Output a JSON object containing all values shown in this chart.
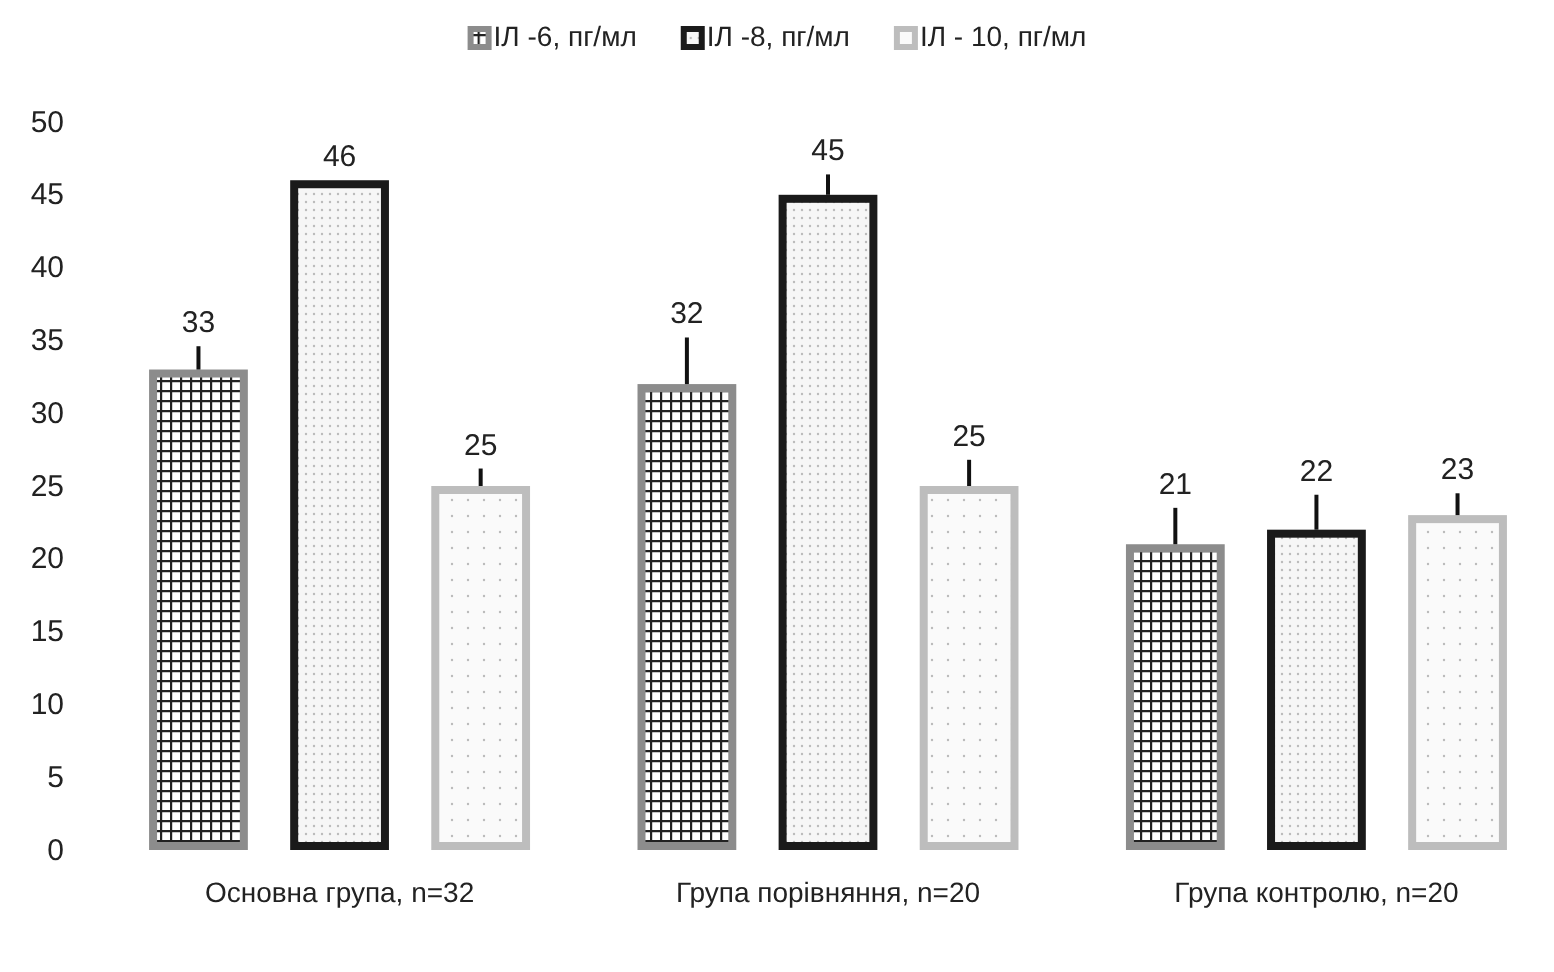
{
  "chart_data": {
    "type": "bar",
    "categories": [
      "Основна група, n=32",
      "Група порівняння, n=20",
      "Група контролю, n=20"
    ],
    "series": [
      {
        "name": "ІЛ -6, пг/мл",
        "color": "#8c8c8c",
        "values": [
          33,
          32,
          21
        ],
        "errors": [
          [
            33,
            34.6
          ],
          [
            32,
            35.2
          ],
          [
            21,
            23.5
          ]
        ]
      },
      {
        "name": "ІЛ -8, пг/мл",
        "color": "#1a1a1a",
        "values": [
          46,
          45,
          22
        ],
        "errors": [
          null,
          [
            45,
            46.4
          ],
          [
            22,
            24.4
          ]
        ]
      },
      {
        "name": "ІЛ - 10, пг/мл",
        "color": "#bdbdbd",
        "values": [
          25,
          25,
          23
        ],
        "errors": [
          [
            25,
            26.2
          ],
          [
            25,
            26.8
          ],
          [
            23,
            24.5
          ]
        ]
      }
    ],
    "ylim": [
      0,
      50
    ],
    "yticks": [
      0,
      5,
      10,
      15,
      20,
      25,
      30,
      35,
      40,
      45,
      50
    ],
    "data_labels": true,
    "legend": "top",
    "grid": false
  }
}
